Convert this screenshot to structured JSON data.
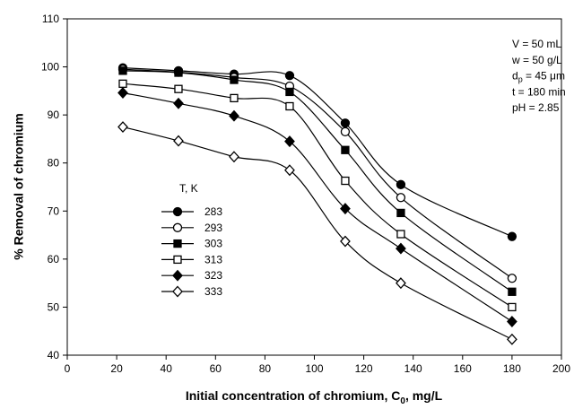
{
  "chart_data": {
    "type": "line",
    "x_label": [
      "Initial concentration of chromium, C",
      "0",
      ", mg/L"
    ],
    "y_label": "% Removal of chromium",
    "x": [
      22.5,
      45,
      67.5,
      90,
      112.5,
      135,
      180
    ],
    "xlim": [
      0,
      200
    ],
    "xticks": [
      0,
      20,
      40,
      60,
      80,
      100,
      120,
      140,
      160,
      180,
      200
    ],
    "ylim": [
      40,
      110
    ],
    "yticks": [
      40,
      50,
      60,
      70,
      80,
      90,
      100,
      110
    ],
    "grid": false,
    "smooth": true,
    "legend": {
      "title": "T, K",
      "position": "left"
    },
    "series": [
      {
        "name": "283",
        "color": "#000000",
        "marker": "circle",
        "filled": true,
        "values": [
          99.8,
          99.2,
          98.5,
          98.2,
          88.3,
          75.5,
          64.7
        ]
      },
      {
        "name": "293",
        "color": "#000000",
        "marker": "circle",
        "filled": false,
        "values": [
          99.5,
          98.9,
          97.8,
          96.0,
          86.5,
          72.8,
          56.0
        ]
      },
      {
        "name": "303",
        "color": "#000000",
        "marker": "square",
        "filled": true,
        "values": [
          99.2,
          98.8,
          97.3,
          94.8,
          82.7,
          69.6,
          53.2
        ]
      },
      {
        "name": "313",
        "color": "#000000",
        "marker": "square",
        "filled": false,
        "values": [
          96.5,
          95.4,
          93.5,
          91.8,
          76.3,
          65.2,
          50.0
        ]
      },
      {
        "name": "323",
        "color": "#000000",
        "marker": "diamond",
        "filled": true,
        "values": [
          94.6,
          92.4,
          89.8,
          84.5,
          70.5,
          62.2,
          47.0
        ]
      },
      {
        "name": "333",
        "color": "#000000",
        "marker": "diamond",
        "filled": false,
        "values": [
          87.5,
          84.6,
          81.3,
          78.5,
          63.7,
          55.0,
          43.3
        ]
      }
    ],
    "annotations": [
      "V   = 50 mL",
      "w   = 50 g/L",
      [
        "d",
        "p",
        "  = 45 μm"
      ],
      "t    = 180 min",
      "pH = 2.85"
    ]
  }
}
